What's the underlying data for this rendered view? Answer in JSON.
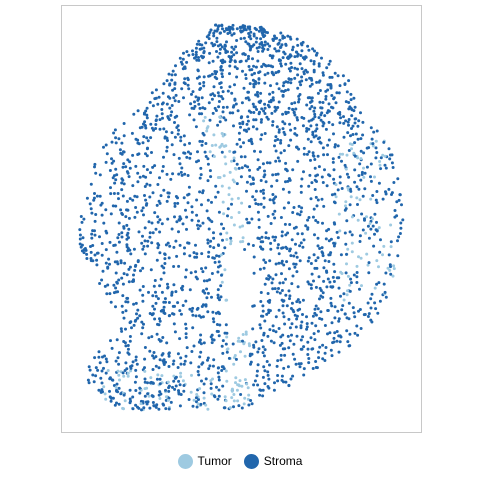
{
  "chart_data": {
    "type": "scatter",
    "title": "",
    "xlabel": "",
    "ylabel": "",
    "grid": false,
    "axes_visible": false,
    "legend_position": "bottom",
    "series": [
      {
        "name": "Tumor",
        "color": "#9ecae1"
      },
      {
        "name": "Stroma",
        "color": "#2166ac"
      }
    ]
  }
}
